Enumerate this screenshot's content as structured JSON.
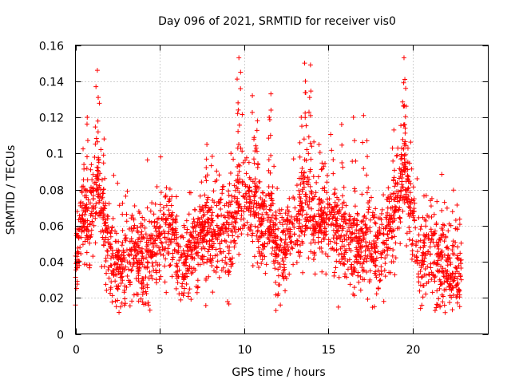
{
  "chart_data": {
    "type": "scatter",
    "title": "Day 096 of 2021, SRMTID for receiver vis0",
    "xlabel": "GPS time / hours",
    "ylabel": "SRMTID / TECUs",
    "xlim": [
      0,
      24.5
    ],
    "ylim": [
      0,
      0.16
    ],
    "xticks": [
      0,
      5,
      10,
      15,
      20
    ],
    "yticks": [
      0,
      0.02,
      0.04,
      0.06,
      0.08,
      0.1,
      0.12,
      0.14,
      0.16
    ],
    "xtick_labels": [
      "0",
      "5",
      "10",
      "15",
      "20"
    ],
    "ytick_labels": [
      "0",
      "0.02",
      "0.04",
      "0.06",
      "0.08",
      "0.1",
      "0.12",
      "0.14",
      "0.16"
    ],
    "grid": true,
    "marker": "plus",
    "color": "#ff0000",
    "x_range_data": [
      0,
      22.9
    ],
    "series": [
      {
        "name": "vis0",
        "profile": [
          {
            "x": 0.0,
            "y": 0.035
          },
          {
            "x": 0.4,
            "y": 0.07
          },
          {
            "x": 0.8,
            "y": 0.055
          },
          {
            "x": 1.3,
            "y": 0.085
          },
          {
            "x": 1.8,
            "y": 0.05
          },
          {
            "x": 2.5,
            "y": 0.035
          },
          {
            "x": 3.3,
            "y": 0.045
          },
          {
            "x": 4.2,
            "y": 0.04
          },
          {
            "x": 5.0,
            "y": 0.05
          },
          {
            "x": 5.6,
            "y": 0.06
          },
          {
            "x": 6.3,
            "y": 0.035
          },
          {
            "x": 7.2,
            "y": 0.05
          },
          {
            "x": 8.2,
            "y": 0.055
          },
          {
            "x": 9.0,
            "y": 0.055
          },
          {
            "x": 9.7,
            "y": 0.07
          },
          {
            "x": 10.3,
            "y": 0.075
          },
          {
            "x": 11.0,
            "y": 0.065
          },
          {
            "x": 11.6,
            "y": 0.06
          },
          {
            "x": 12.2,
            "y": 0.04
          },
          {
            "x": 13.0,
            "y": 0.06
          },
          {
            "x": 13.6,
            "y": 0.07
          },
          {
            "x": 14.2,
            "y": 0.06
          },
          {
            "x": 15.0,
            "y": 0.065
          },
          {
            "x": 16.0,
            "y": 0.05
          },
          {
            "x": 17.0,
            "y": 0.05
          },
          {
            "x": 18.0,
            "y": 0.045
          },
          {
            "x": 18.8,
            "y": 0.06
          },
          {
            "x": 19.4,
            "y": 0.085
          },
          {
            "x": 19.9,
            "y": 0.07
          },
          {
            "x": 20.4,
            "y": 0.04
          },
          {
            "x": 21.2,
            "y": 0.045
          },
          {
            "x": 22.0,
            "y": 0.035
          },
          {
            "x": 22.9,
            "y": 0.035
          }
        ],
        "spread": 0.012,
        "point_count": 2600,
        "spikes": [
          {
            "x": 1.3,
            "y": 0.146
          },
          {
            "x": 1.35,
            "y": 0.131
          },
          {
            "x": 0.7,
            "y": 0.12
          },
          {
            "x": 1.7,
            "y": 0.108
          },
          {
            "x": 5.4,
            "y": 0.081
          },
          {
            "x": 7.8,
            "y": 0.105
          },
          {
            "x": 9.7,
            "y": 0.153
          },
          {
            "x": 9.8,
            "y": 0.145
          },
          {
            "x": 9.65,
            "y": 0.128
          },
          {
            "x": 10.5,
            "y": 0.132
          },
          {
            "x": 10.8,
            "y": 0.118
          },
          {
            "x": 11.6,
            "y": 0.133
          },
          {
            "x": 11.5,
            "y": 0.12
          },
          {
            "x": 13.6,
            "y": 0.15
          },
          {
            "x": 13.95,
            "y": 0.149
          },
          {
            "x": 13.65,
            "y": 0.14
          },
          {
            "x": 13.9,
            "y": 0.131
          },
          {
            "x": 13.4,
            "y": 0.12
          },
          {
            "x": 15.8,
            "y": 0.116
          },
          {
            "x": 16.5,
            "y": 0.12
          },
          {
            "x": 17.1,
            "y": 0.121
          },
          {
            "x": 17.3,
            "y": 0.107
          },
          {
            "x": 18.9,
            "y": 0.113
          },
          {
            "x": 19.5,
            "y": 0.153
          },
          {
            "x": 19.55,
            "y": 0.141
          },
          {
            "x": 19.6,
            "y": 0.136
          },
          {
            "x": 11.9,
            "y": 0.013
          },
          {
            "x": 0.0,
            "y": 0.016
          },
          {
            "x": 18.3,
            "y": 0.018
          }
        ]
      }
    ]
  }
}
